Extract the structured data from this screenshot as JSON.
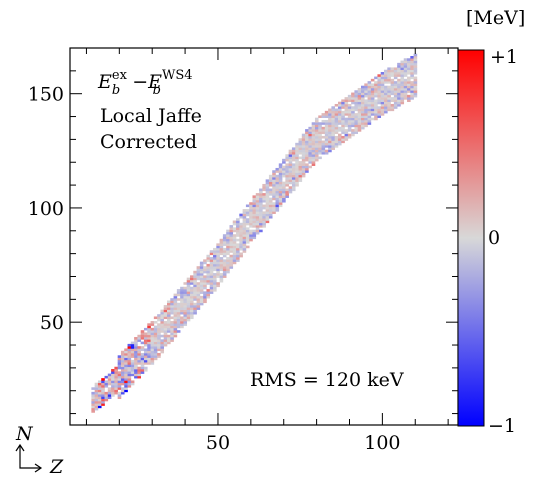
{
  "chart_data": {
    "type": "heatmap",
    "title": "",
    "xlabel": "Z",
    "ylabel": "N",
    "xlim": [
      5,
      123
    ],
    "ylim": [
      5,
      170
    ],
    "xticks": [
      50,
      100
    ],
    "yticks": [
      50,
      100,
      150
    ],
    "xtick_labels": [
      "50",
      "100"
    ],
    "ytick_labels": [
      "50",
      "100",
      "150"
    ],
    "colorbar": {
      "unit": "[MeV]",
      "range": [
        -1,
        1
      ],
      "labels": [
        "+1",
        "0",
        "−1"
      ],
      "colors": [
        "#ff0000",
        "#d8d8d8",
        "#0000ff"
      ]
    },
    "annotation": {
      "line1_main": "E",
      "line1_sub1": "b",
      "line1_sup1": "ex",
      "line1_minus": "−",
      "line1_main2": "E",
      "line1_sub2": "b",
      "line1_sup2": "WS4",
      "line2": "Local Jaffe",
      "line3": "Corrected"
    },
    "rms_label": "RMS = 120 keV",
    "band_center_N": [
      [
        12,
        16
      ],
      [
        20,
        26
      ],
      [
        30,
        41
      ],
      [
        40,
        58
      ],
      [
        50,
        75
      ],
      [
        60,
        94
      ],
      [
        70,
        112
      ],
      [
        80,
        130
      ],
      [
        90,
        140
      ],
      [
        100,
        150
      ],
      [
        110,
        158
      ]
    ],
    "band_half_width": 9,
    "residual_rms_mev": 0.12,
    "background_color": "#ffffff",
    "frame_color": "#000000"
  }
}
